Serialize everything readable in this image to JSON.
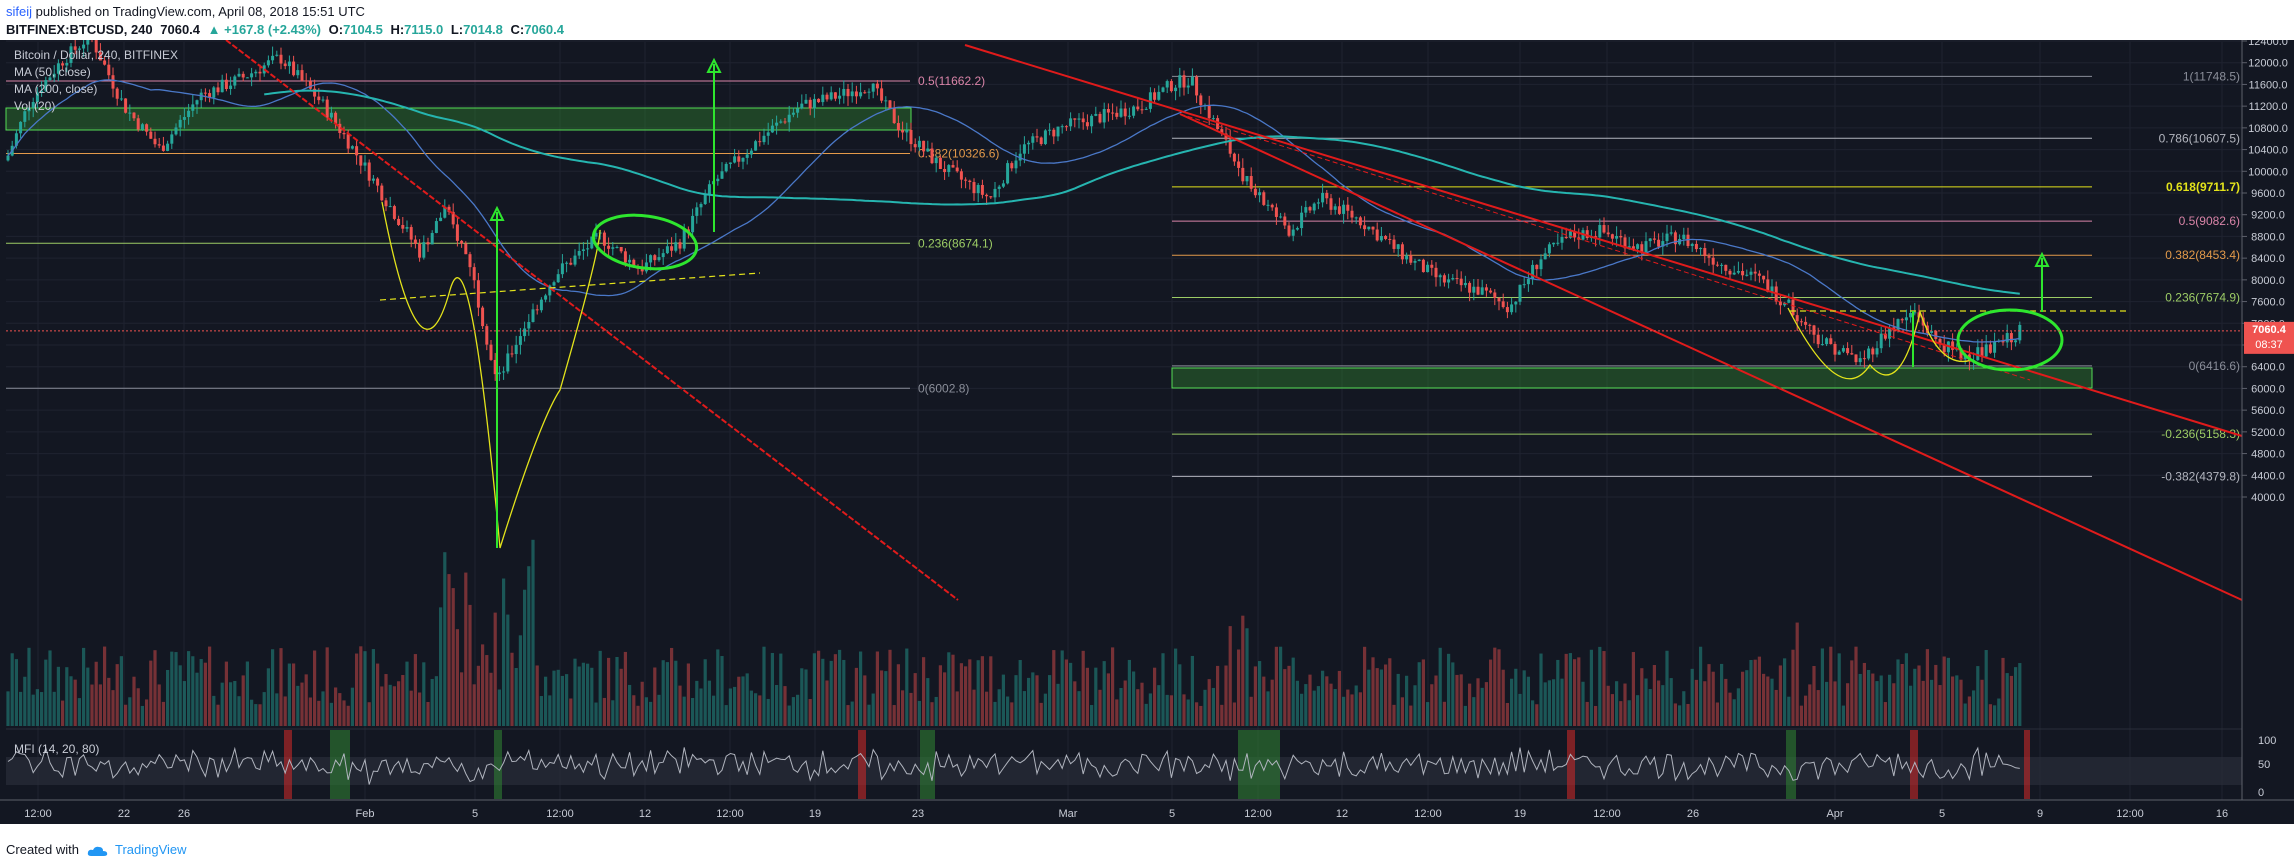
{
  "header": {
    "username": "sifeij",
    "published_text": " published on TradingView.com, April 08, 2018 15:51 UTC",
    "symbol_line": "BITFINEX:BTCUSD, 240",
    "last": "7060.4",
    "change": "▲ +167.8 (+2.43%)",
    "open_label": "O:",
    "open": "7104.5",
    "high_label": "H:",
    "high": "7115.0",
    "low_label": "L:",
    "low": "7014.8",
    "close_label": "C:",
    "close": "7060.4"
  },
  "legend": {
    "title": "Bitcoin / Dollar, 240, BITFINEX",
    "ma50": "MA (50, close)",
    "ma200": "MA (200, close)",
    "vol": "Vol (20)",
    "mfi": "MFI (14, 20, 80)"
  },
  "price_label": {
    "value": "7060.4",
    "countdown": "08:37"
  },
  "footer": {
    "created_with": "Created with",
    "brand": "TradingView"
  },
  "colors": {
    "background": "#131722",
    "up": "#26a69a",
    "down": "#ef5350",
    "ma50": "#4a78c8",
    "ma200": "#26b5b0",
    "trendline": "#e01b1b",
    "fib_yellow": "#e3e31b",
    "arrow_green": "#2ee62e",
    "volume_ma": "#c438c4"
  },
  "chart_data": {
    "type": "candlestick",
    "symbol": "BITFINEX:BTCUSD",
    "timeframe": "240",
    "y_axis": {
      "ticks": [
        "12400.0",
        "12000.0",
        "11600.0",
        "11200.0",
        "10800.0",
        "10400.0",
        "10000.0",
        "9600.0",
        "9200.0",
        "8800.0",
        "8400.0",
        "8000.0",
        "7600.0",
        "7200.0",
        "6800.0",
        "6400.0",
        "6000.0",
        "5600.0",
        "5200.0",
        "4800.0",
        "4400.0",
        "4000.0"
      ],
      "range": [
        3900,
        12600
      ]
    },
    "x_axis": {
      "ticks": [
        "12:00",
        "22",
        "26",
        "Feb",
        "5",
        "12:00",
        "12",
        "12:00",
        "19",
        "23",
        "Mar",
        "5",
        "12:00",
        "12",
        "12:00",
        "19",
        "12:00",
        "26",
        "Apr",
        "5",
        "9",
        "12:00",
        "16"
      ]
    },
    "mfi_axis": {
      "ticks": [
        "100",
        "50",
        "0"
      ]
    },
    "fib_levels": [
      {
        "label": "0.5(11662.2)",
        "price": 11662.2
      },
      {
        "label": "0.382(10326.6)",
        "price": 10326.6
      },
      {
        "label": "0.236(8674.1)",
        "price": 8674.1
      },
      {
        "label": "0(6002.8)",
        "price": 6002.8
      },
      {
        "label": "1(11748.5)",
        "price": 11748.5
      },
      {
        "label": "0.786(10607.5)",
        "price": 10607.5
      },
      {
        "label": "0.618(9711.7)",
        "price": 9711.7
      },
      {
        "label": "0.5(9082.6)",
        "price": 9082.6
      },
      {
        "label": "0.382(8453.4)",
        "price": 8453.4
      },
      {
        "label": "0.236(7674.9)",
        "price": 7674.9
      },
      {
        "label": "0(6416.6)",
        "price": 6416.6
      },
      {
        "label": "-0.236(5158.3)",
        "price": 5158.3
      },
      {
        "label": "-0.382(4379.8)",
        "price": 4379.8
      }
    ],
    "last_price": 7060.4
  }
}
